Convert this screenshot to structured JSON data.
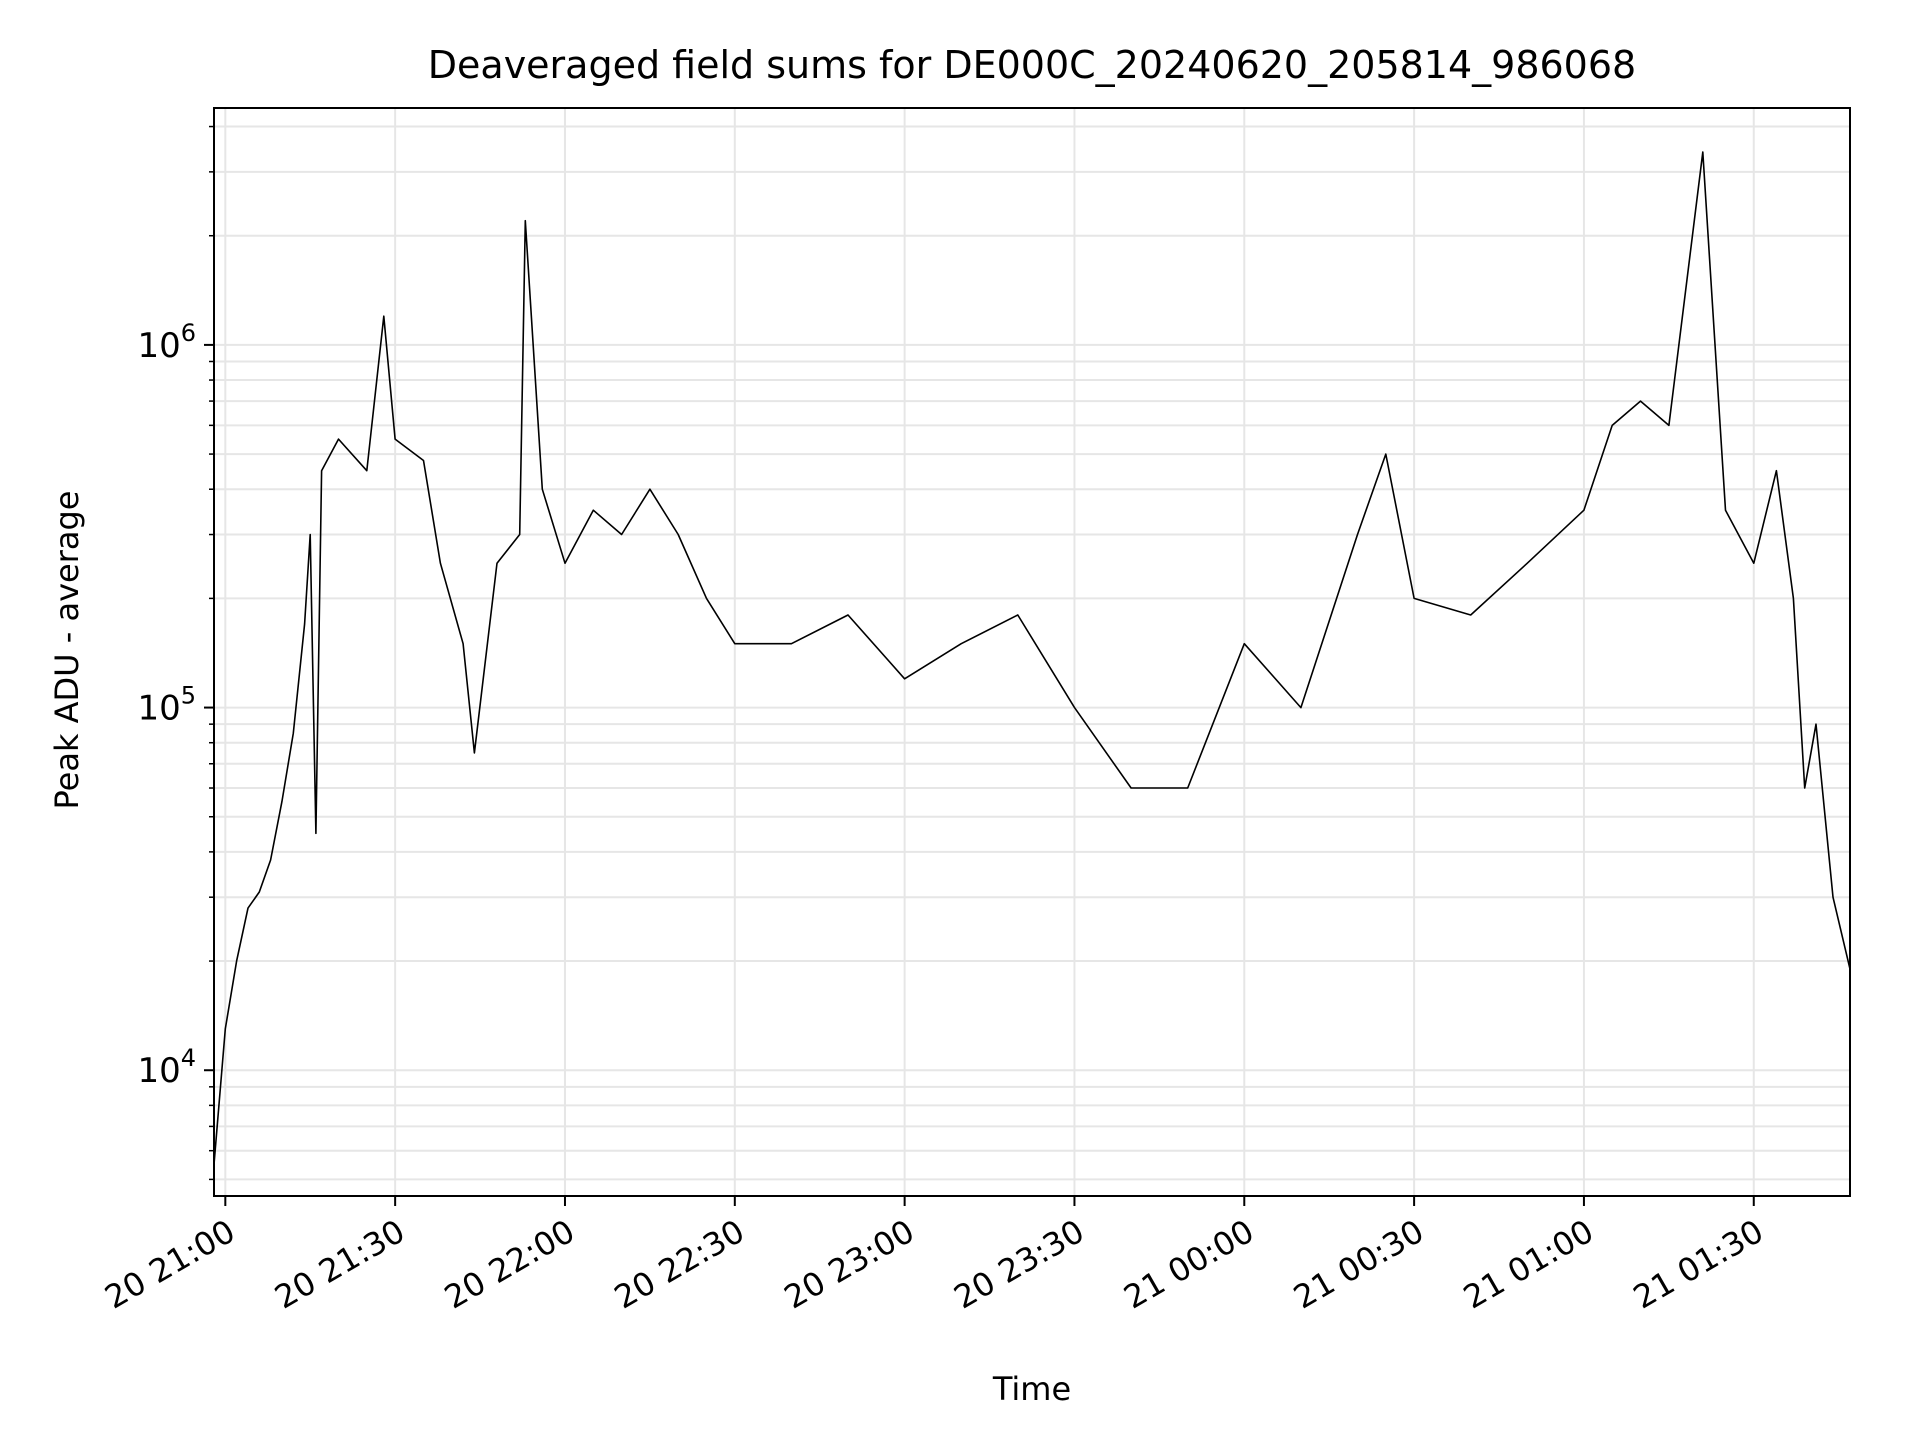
{
  "chart_data": {
    "type": "line",
    "title": "Deaveraged field sums for DE000C_20240620_205814_986068",
    "xlabel": "Time",
    "ylabel": "Peak ADU - average",
    "x_axis": {
      "kind": "time",
      "range": [
        "2024-06-20 20:58:00",
        "2024-06-21 01:47:00"
      ],
      "ticks": [
        {
          "t": "2024-06-20 21:00",
          "label": "20 21:00"
        },
        {
          "t": "2024-06-20 21:30",
          "label": "20 21:30"
        },
        {
          "t": "2024-06-20 22:00",
          "label": "20 22:00"
        },
        {
          "t": "2024-06-20 22:30",
          "label": "20 22:30"
        },
        {
          "t": "2024-06-20 23:00",
          "label": "20 23:00"
        },
        {
          "t": "2024-06-20 23:30",
          "label": "20 23:30"
        },
        {
          "t": "2024-06-21 00:00",
          "label": "21 00:00"
        },
        {
          "t": "2024-06-21 00:30",
          "label": "21 00:30"
        },
        {
          "t": "2024-06-21 01:00",
          "label": "21 01:00"
        },
        {
          "t": "2024-06-21 01:30",
          "label": "21 01:30"
        }
      ]
    },
    "y_axis": {
      "scale": "log",
      "range": [
        4500,
        4500000
      ],
      "major_ticks": [
        {
          "value": 10000,
          "base": "10",
          "exp": "4"
        },
        {
          "value": 100000,
          "base": "10",
          "exp": "5"
        },
        {
          "value": 1000000,
          "base": "10",
          "exp": "6"
        }
      ]
    },
    "grid": true,
    "line_color": "#000000",
    "grid_color": "#e6e6e6",
    "series": [
      {
        "points": [
          [
            "2024-06-20 20:58",
            5500
          ],
          [
            "2024-06-20 21:00",
            13000
          ],
          [
            "2024-06-20 21:02",
            20000
          ],
          [
            "2024-06-20 21:04",
            28000
          ],
          [
            "2024-06-20 21:06",
            31000
          ],
          [
            "2024-06-20 21:08",
            38000
          ],
          [
            "2024-06-20 21:10",
            55000
          ],
          [
            "2024-06-20 21:12",
            85000
          ],
          [
            "2024-06-20 21:14",
            170000
          ],
          [
            "2024-06-20 21:15",
            300000
          ],
          [
            "2024-06-20 21:16",
            45000
          ],
          [
            "2024-06-20 21:17",
            450000
          ],
          [
            "2024-06-20 21:20",
            550000
          ],
          [
            "2024-06-20 21:25",
            450000
          ],
          [
            "2024-06-20 21:28",
            1200000
          ],
          [
            "2024-06-20 21:30",
            550000
          ],
          [
            "2024-06-20 21:35",
            480000
          ],
          [
            "2024-06-20 21:38",
            250000
          ],
          [
            "2024-06-20 21:42",
            150000
          ],
          [
            "2024-06-20 21:44",
            75000
          ],
          [
            "2024-06-20 21:48",
            250000
          ],
          [
            "2024-06-20 21:52",
            300000
          ],
          [
            "2024-06-20 21:53",
            2200000
          ],
          [
            "2024-06-20 21:56",
            400000
          ],
          [
            "2024-06-20 22:00",
            250000
          ],
          [
            "2024-06-20 22:05",
            350000
          ],
          [
            "2024-06-20 22:10",
            300000
          ],
          [
            "2024-06-20 22:15",
            400000
          ],
          [
            "2024-06-20 22:20",
            300000
          ],
          [
            "2024-06-20 22:25",
            200000
          ],
          [
            "2024-06-20 22:30",
            150000
          ],
          [
            "2024-06-20 22:40",
            150000
          ],
          [
            "2024-06-20 22:50",
            180000
          ],
          [
            "2024-06-20 23:00",
            120000
          ],
          [
            "2024-06-20 23:10",
            150000
          ],
          [
            "2024-06-20 23:20",
            180000
          ],
          [
            "2024-06-20 23:30",
            100000
          ],
          [
            "2024-06-20 23:40",
            60000
          ],
          [
            "2024-06-20 23:50",
            60000
          ],
          [
            "2024-06-21 00:00",
            150000
          ],
          [
            "2024-06-21 00:10",
            100000
          ],
          [
            "2024-06-21 00:20",
            300000
          ],
          [
            "2024-06-21 00:25",
            500000
          ],
          [
            "2024-06-21 00:30",
            200000
          ],
          [
            "2024-06-21 00:40",
            180000
          ],
          [
            "2024-06-21 00:50",
            250000
          ],
          [
            "2024-06-21 01:00",
            350000
          ],
          [
            "2024-06-21 01:05",
            600000
          ],
          [
            "2024-06-21 01:10",
            700000
          ],
          [
            "2024-06-21 01:15",
            600000
          ],
          [
            "2024-06-21 01:21",
            3400000
          ],
          [
            "2024-06-21 01:25",
            350000
          ],
          [
            "2024-06-21 01:30",
            250000
          ],
          [
            "2024-06-21 01:34",
            450000
          ],
          [
            "2024-06-21 01:37",
            200000
          ],
          [
            "2024-06-21 01:39",
            60000
          ],
          [
            "2024-06-21 01:41",
            90000
          ],
          [
            "2024-06-21 01:44",
            30000
          ],
          [
            "2024-06-21 01:47",
            19000
          ]
        ]
      }
    ]
  }
}
